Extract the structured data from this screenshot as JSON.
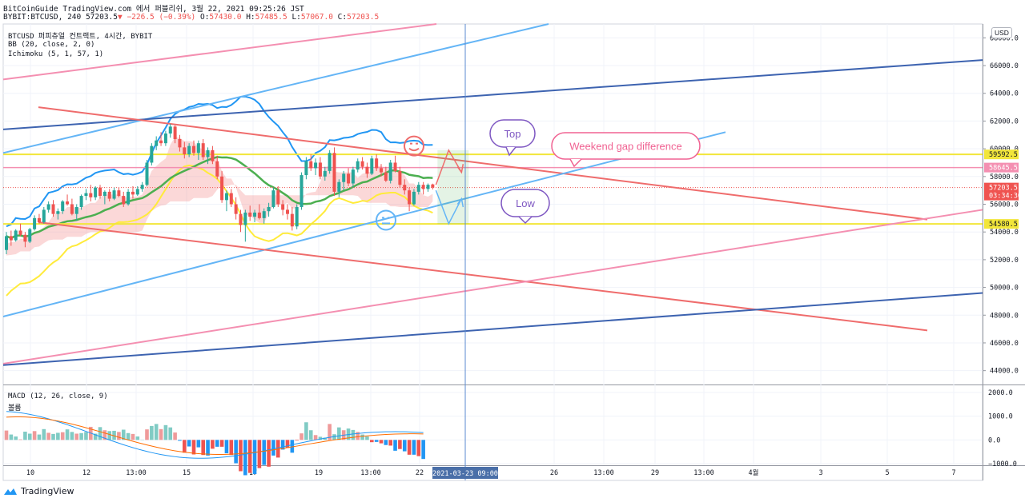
{
  "header": {
    "line1": "BitCoinGuide TradingView.com 에서 퍼블리쉬, 3월 22, 2021 09:25:26 JST",
    "symbol": "BYBIT:BTCUSD, 240 57203.5",
    "change": "▼ −226.5 (−0.39%)",
    "o_label": "O:",
    "o_val": "57430.0",
    "h_label": "H:",
    "h_val": "57485.5",
    "l_label": "L:",
    "l_val": "57067.0",
    "c_label": "C:",
    "c_val": "57203.5"
  },
  "indicators": {
    "title": "BTCUSD 퍼피츄얼 컨트랙트, 4시간, BYBIT",
    "bb": "BB (20, close, 2, 0)",
    "ichimoku": "Ichimoku (5, 1, 57, 1)",
    "macd": "MACD (12, 26, close, 9)",
    "macd_sub": "볼륨"
  },
  "currency_button": "USD",
  "footer": {
    "brand": "TradingView"
  },
  "colors": {
    "up": "#26a69a",
    "down": "#ef5350",
    "bb": "#2196f3",
    "ichimoku_base": "#4caf50",
    "ichimoku_lag": "#ffeb3b",
    "yellow_level": "#f2e63a",
    "pink_level": "#f48fb1",
    "light_blue": "#64b5f6",
    "dark_blue": "#3d63b0",
    "salmon": "#ef6c6c",
    "vline": "#5b8bd0",
    "annotation_purple": "#7e57c2"
  },
  "chart_data": {
    "type": "line",
    "title": "BTCUSD 퍼피츄얼 컨트랙트, 4시간, BYBIT",
    "ylim": [
      43000,
      69000
    ],
    "y_ticks": [
      "68000.0",
      "66000.0",
      "64000.0",
      "62000.0",
      "60000.0",
      "58000.0",
      "56000.0",
      "54000.0",
      "52000.0",
      "50000.0",
      "48000.0",
      "46000.0",
      "44000.0"
    ],
    "x_ticks": [
      "10",
      "12",
      "13:00",
      "15",
      "17",
      "19",
      "13:00",
      "22",
      "26",
      "13:00",
      "29",
      "13:00",
      "4월",
      "3",
      "5",
      "7"
    ],
    "crosshair_x_label": "2021-03-23  09:00",
    "macd_ylim": [
      -1000,
      2000
    ],
    "macd_ticks": [
      "2000.0",
      "1000.0",
      "0.0",
      "−1000.0"
    ],
    "price_labels": [
      {
        "value": 59592.5,
        "text": "59592.5",
        "kind": "level"
      },
      {
        "value": 58645.5,
        "text": "58645.5",
        "kind": "pink"
      },
      {
        "value": 57203.5,
        "text": "57203.5",
        "kind": "last",
        "timer": "03:34:36"
      },
      {
        "value": 54580.5,
        "text": "54580.5",
        "kind": "level"
      }
    ],
    "candles": [
      [
        52700,
        54000,
        52400,
        53700
      ],
      [
        53700,
        54100,
        53000,
        53400
      ],
      [
        53400,
        54200,
        53300,
        54100
      ],
      [
        54100,
        54600,
        53700,
        53800
      ],
      [
        53800,
        54000,
        52900,
        53300
      ],
      [
        53300,
        54300,
        53200,
        54200
      ],
      [
        54200,
        55200,
        54100,
        55000
      ],
      [
        55000,
        55300,
        54600,
        54700
      ],
      [
        54700,
        55800,
        54600,
        55600
      ],
      [
        55600,
        56200,
        55400,
        56000
      ],
      [
        56000,
        56300,
        55100,
        55300
      ],
      [
        55300,
        55700,
        54900,
        55500
      ],
      [
        55500,
        56300,
        55300,
        56200
      ],
      [
        56200,
        56700,
        55900,
        56000
      ],
      [
        56000,
        56400,
        55200,
        55300
      ],
      [
        55300,
        56000,
        54800,
        55800
      ],
      [
        55800,
        56700,
        55600,
        56600
      ],
      [
        56600,
        57100,
        56300,
        56800
      ],
      [
        56800,
        57400,
        56200,
        56500
      ],
      [
        56500,
        57300,
        56300,
        57200
      ],
      [
        57200,
        57400,
        56400,
        56600
      ],
      [
        56600,
        57000,
        56000,
        56900
      ],
      [
        56900,
        57100,
        56200,
        56400
      ],
      [
        56400,
        57200,
        56300,
        57000
      ],
      [
        57000,
        57200,
        56500,
        56600
      ],
      [
        56600,
        56900,
        55800,
        56000
      ],
      [
        56000,
        57100,
        55900,
        56900
      ],
      [
        56900,
        57300,
        56400,
        56700
      ],
      [
        56700,
        57300,
        56600,
        57100
      ],
      [
        57100,
        57600,
        56900,
        57400
      ],
      [
        57400,
        59200,
        57300,
        59000
      ],
      [
        59000,
        60400,
        58800,
        60200
      ],
      [
        60200,
        60900,
        59900,
        60600
      ],
      [
        60600,
        61200,
        60200,
        60400
      ],
      [
        60400,
        61300,
        60200,
        61100
      ],
      [
        61100,
        61800,
        60800,
        61600
      ],
      [
        61600,
        61700,
        60400,
        60700
      ],
      [
        60700,
        61000,
        59800,
        60100
      ],
      [
        60100,
        60500,
        59300,
        59600
      ],
      [
        59600,
        60400,
        59400,
        60200
      ],
      [
        60200,
        60600,
        59500,
        59700
      ],
      [
        59700,
        60600,
        59200,
        60400
      ],
      [
        60400,
        60700,
        59200,
        59400
      ],
      [
        59400,
        60100,
        58900,
        59900
      ],
      [
        59900,
        60200,
        58900,
        59100
      ],
      [
        59100,
        59500,
        57800,
        58000
      ],
      [
        58000,
        58400,
        56100,
        56300
      ],
      [
        56300,
        57000,
        55500,
        56800
      ],
      [
        56800,
        57100,
        55800,
        56000
      ],
      [
        56000,
        56500,
        54900,
        55300
      ],
      [
        55300,
        55600,
        54000,
        54500
      ],
      [
        54500,
        55600,
        53300,
        55400
      ],
      [
        55400,
        55900,
        54800,
        55100
      ],
      [
        55100,
        55600,
        54700,
        55400
      ],
      [
        55400,
        56000,
        54900,
        55000
      ],
      [
        55000,
        55700,
        54600,
        55500
      ],
      [
        55500,
        56100,
        55100,
        55800
      ],
      [
        55800,
        57200,
        55700,
        57000
      ],
      [
        57000,
        57300,
        55800,
        56000
      ],
      [
        56000,
        56300,
        55200,
        55600
      ],
      [
        55600,
        56000,
        54900,
        55300
      ],
      [
        55300,
        55800,
        54100,
        54400
      ],
      [
        54400,
        56000,
        54200,
        55800
      ],
      [
        55800,
        58300,
        55600,
        58100
      ],
      [
        58100,
        59400,
        57800,
        59100
      ],
      [
        59100,
        59600,
        58400,
        58600
      ],
      [
        58600,
        59300,
        58100,
        59000
      ],
      [
        59000,
        59400,
        57800,
        58000
      ],
      [
        58000,
        58700,
        57700,
        58400
      ],
      [
        58400,
        59900,
        58200,
        59700
      ],
      [
        59700,
        60100,
        56600,
        56900
      ],
      [
        56900,
        57800,
        56500,
        57600
      ],
      [
        57600,
        58400,
        57000,
        58200
      ],
      [
        58200,
        58600,
        57300,
        57500
      ],
      [
        57500,
        58700,
        57200,
        58500
      ],
      [
        58500,
        59300,
        58300,
        59100
      ],
      [
        59100,
        59400,
        58500,
        58700
      ],
      [
        58700,
        59000,
        57900,
        58200
      ],
      [
        58200,
        59500,
        58100,
        59300
      ],
      [
        59300,
        59600,
        58400,
        58600
      ],
      [
        58600,
        58900,
        58000,
        58300
      ],
      [
        58300,
        58700,
        57600,
        57700
      ],
      [
        57700,
        59200,
        57500,
        59000
      ],
      [
        59000,
        59500,
        58300,
        58400
      ],
      [
        58400,
        58700,
        57200,
        57400
      ],
      [
        57400,
        57800,
        56700,
        57000
      ],
      [
        57000,
        57200,
        55500,
        56000
      ],
      [
        56000,
        57100,
        55900,
        56900
      ],
      [
        56900,
        57600,
        56700,
        57400
      ],
      [
        57400,
        57600,
        56700,
        57100
      ],
      [
        57100,
        57500,
        56900,
        57400
      ],
      [
        57430,
        57485.5,
        57067,
        57203.5
      ]
    ],
    "macd_histogram": [
      33,
      19,
      12,
      2,
      29,
      22,
      31,
      19,
      38,
      25,
      21,
      25,
      27,
      37,
      28,
      22,
      24,
      28,
      46,
      22,
      45,
      34,
      31,
      32,
      28,
      36,
      24,
      21,
      12,
      1,
      37,
      49,
      56,
      38,
      52,
      44,
      26,
      -3,
      -45,
      -23,
      -51,
      -26,
      -53,
      -55,
      -31,
      -24,
      -24,
      -47,
      -53,
      -82,
      -110,
      -124,
      -116,
      -120,
      -99,
      -88,
      -94,
      -55,
      -62,
      -34,
      -28,
      -45,
      -2,
      23,
      62,
      34,
      17,
      11,
      8,
      56,
      20,
      44,
      34,
      40,
      35,
      28,
      19,
      12,
      -8,
      -7,
      -12,
      -18,
      -20,
      -38,
      -32,
      -40,
      -52,
      -52,
      -57,
      -67
    ],
    "macd_line_start": 1200,
    "macd_signal_start": 1000,
    "annotations": {
      "top_label": "Top",
      "low_label": "Low",
      "gap_label": "Weekend gap difference"
    }
  }
}
